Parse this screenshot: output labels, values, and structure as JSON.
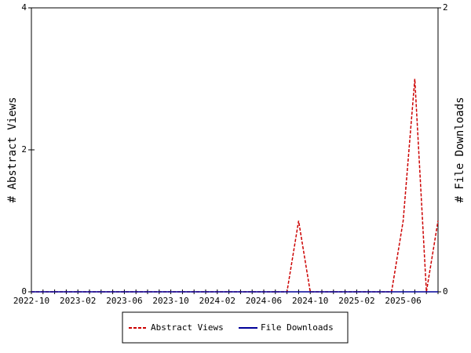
{
  "chart_data": {
    "type": "line",
    "categories": [
      "2022-10",
      null,
      null,
      null,
      "2023-02",
      null,
      null,
      null,
      "2023-06",
      null,
      null,
      null,
      "2023-10",
      null,
      null,
      null,
      "2024-02",
      null,
      null,
      null,
      "2024-06",
      null,
      null,
      null,
      "2024-10",
      null,
      null,
      null,
      "2025-02",
      null,
      null,
      null,
      "2025-06",
      null,
      null,
      null
    ],
    "series": [
      {
        "name": "Abstract Views",
        "color": "#cc0000",
        "dashed": true,
        "axis": "y",
        "values": [
          0,
          0,
          0,
          0,
          0,
          0,
          0,
          0,
          0,
          0,
          0,
          0,
          0,
          0,
          0,
          0,
          0,
          0,
          0,
          0,
          0,
          0,
          0,
          1,
          0,
          0,
          0,
          0,
          0,
          0,
          0,
          0,
          1,
          3,
          0,
          1
        ]
      },
      {
        "name": "File Downloads",
        "color": "#000099",
        "dashed": false,
        "axis": "y2",
        "values": [
          0,
          0,
          0,
          0,
          0,
          0,
          0,
          0,
          0,
          0,
          0,
          0,
          0,
          0,
          0,
          0,
          0,
          0,
          0,
          0,
          0,
          0,
          0,
          0,
          0,
          0,
          0,
          0,
          0,
          0,
          0,
          0,
          0,
          0,
          0,
          0
        ]
      }
    ],
    "ylabel": "# Abstract Views",
    "y2label": "# File Downloads",
    "ylim": [
      0,
      4
    ],
    "yticks": [
      0,
      2,
      4
    ],
    "y2lim": [
      0,
      2
    ],
    "y2ticks": [
      0,
      2
    ],
    "legend": "bottom"
  }
}
